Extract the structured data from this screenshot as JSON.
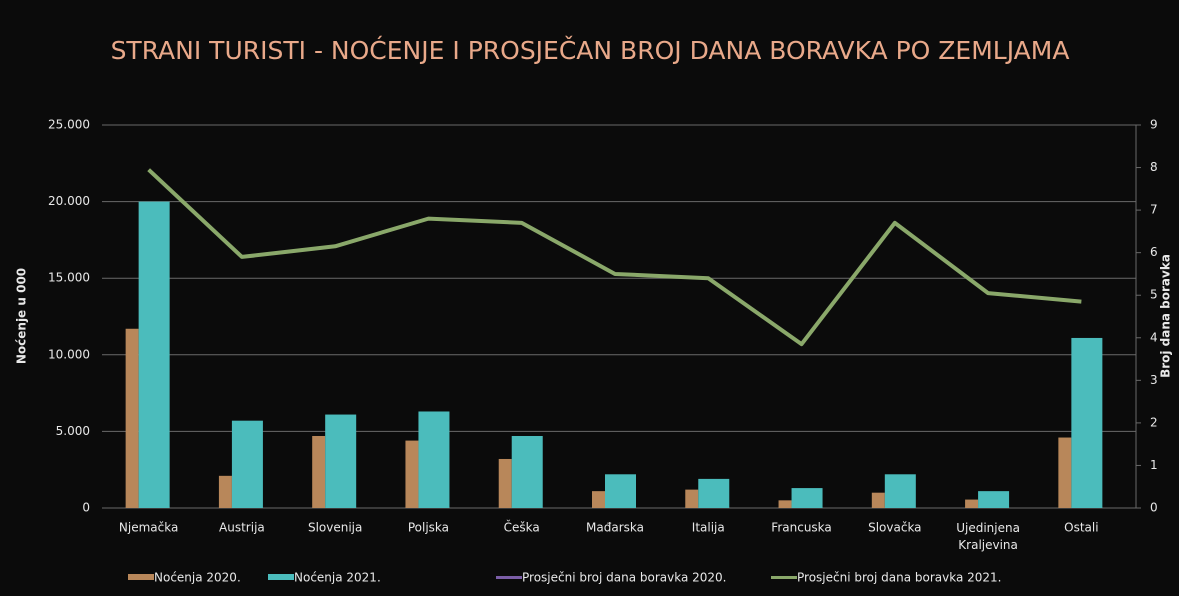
{
  "chart_data": {
    "type": "bar_line",
    "title": "STRANI TURISTI - NOĆENJE I PROSJEČAN BROJ DANA BORAVKA PO ZEMLJAMA",
    "y_label": "Noćenje u 000",
    "y2_label": "Broj dana boravka",
    "categories": [
      "Njemačka",
      "Austrija",
      "Slovenija",
      "Poljska",
      "Češka",
      "Mađarska",
      "Italija",
      "Francuska",
      "Slovačka",
      "Ujedinjena Kraljevina",
      "Ostali"
    ],
    "series": [
      {
        "name": "Noćenja 2020.",
        "kind": "bar",
        "color": "#b8875a",
        "values": [
          11700,
          2100,
          4700,
          4400,
          3200,
          1100,
          1200,
          500,
          1000,
          550,
          4600
        ]
      },
      {
        "name": "Noćenja 2021.",
        "kind": "bar",
        "color": "#4bbcbc",
        "values": [
          20000,
          5700,
          6100,
          6300,
          4700,
          2200,
          1900,
          1300,
          2200,
          1100,
          11100
        ]
      },
      {
        "name": "Prosječni broj dana boravka 2020.",
        "kind": "line",
        "axis": "y2",
        "color": "#7b5ea7",
        "values": [
          null,
          null,
          null,
          null,
          null,
          null,
          null,
          null,
          null,
          null,
          null
        ]
      },
      {
        "name": "Prosječni broj dana boravka 2021.",
        "kind": "line",
        "axis": "y2",
        "color": "#8aa86a",
        "values": [
          7.95,
          5.9,
          6.15,
          6.8,
          6.7,
          5.5,
          5.4,
          3.85,
          6.7,
          5.05,
          4.85
        ]
      }
    ],
    "ylim": [
      0,
      25000
    ],
    "yticks": [
      {
        "value": 0,
        "label": "0"
      },
      {
        "value": 5000,
        "label": "5.000"
      },
      {
        "value": 10000,
        "label": "10.000"
      },
      {
        "value": 15000,
        "label": "15.000"
      },
      {
        "value": 20000,
        "label": "20.000"
      },
      {
        "value": 25000,
        "label": "25.000"
      }
    ],
    "y2lim": [
      0,
      9
    ],
    "y2ticks": [
      0,
      1,
      2,
      3,
      4,
      5,
      6,
      7,
      8,
      9
    ],
    "grid": true,
    "legend": "bottom"
  }
}
